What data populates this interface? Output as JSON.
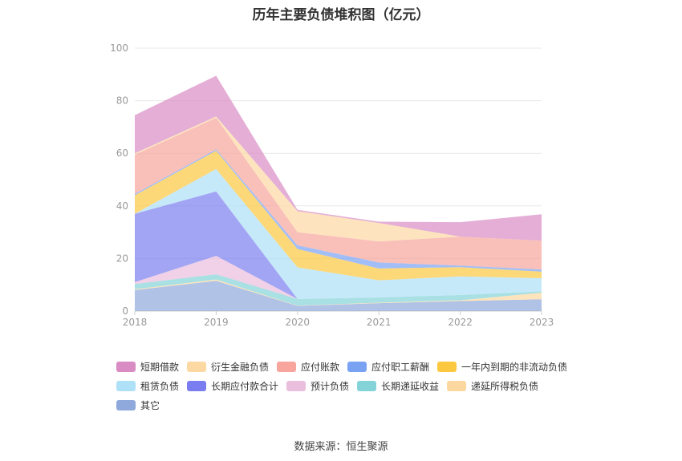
{
  "title": "历年主要负债堆积图（亿元）",
  "source": "数据来源：恒生聚源",
  "chart_data": {
    "type": "area",
    "stacked": true,
    "categories": [
      "2018",
      "2019",
      "2020",
      "2021",
      "2022",
      "2023"
    ],
    "ylim": [
      0,
      100
    ],
    "yticks": [
      0,
      20,
      40,
      60,
      80,
      100
    ],
    "grid": true,
    "legend_position": "bottom",
    "series": [
      {
        "name": "其它",
        "color": "#8fa9dc",
        "values": [
          8,
          11.5,
          2,
          3,
          3.8,
          4.5
        ]
      },
      {
        "name": "递延所得税负债",
        "color": "#fcd8a0",
        "values": [
          0.3,
          0.5,
          0.1,
          0.2,
          0.3,
          2.5
        ]
      },
      {
        "name": "长期递延收益",
        "color": "#83d3d8",
        "values": [
          2,
          2,
          2.5,
          2,
          2,
          0.5
        ]
      },
      {
        "name": "预计负债",
        "color": "#eabedd",
        "values": [
          0.7,
          7,
          0,
          0,
          0,
          0
        ]
      },
      {
        "name": "长期应付款合计",
        "color": "#7a7df0",
        "values": [
          26,
          24.5,
          0,
          0,
          0,
          0
        ]
      },
      {
        "name": "租赁负债",
        "color": "#aee0f8",
        "values": [
          0,
          8.5,
          12,
          6.5,
          7.1,
          5
        ]
      },
      {
        "name": "一年内到期的非流动负债",
        "color": "#fcc840",
        "values": [
          7,
          7,
          7,
          4.5,
          3.5,
          2.5
        ]
      },
      {
        "name": "应付职工薪酬",
        "color": "#7aa2f3",
        "values": [
          0.5,
          0.5,
          1.4,
          2.3,
          0.6,
          0.8
        ]
      },
      {
        "name": "应付账款",
        "color": "#f7a59d",
        "values": [
          15,
          12,
          5,
          8,
          11,
          11
        ]
      },
      {
        "name": "衍生金融负债",
        "color": "#fcd9a2",
        "values": [
          0.5,
          0.5,
          8,
          7,
          0,
          0
        ]
      },
      {
        "name": "短期借款",
        "color": "#d98bc4",
        "values": [
          14.5,
          15.5,
          0.5,
          0.5,
          5.5,
          10
        ]
      }
    ]
  },
  "legend_order": [
    "短期借款",
    "衍生金融负债",
    "应付账款",
    "应付职工薪酬",
    "一年内到期的非流动负债",
    "租赁负债",
    "长期应付款合计",
    "预计负债",
    "长期递延收益",
    "递延所得税负债",
    "其它"
  ]
}
